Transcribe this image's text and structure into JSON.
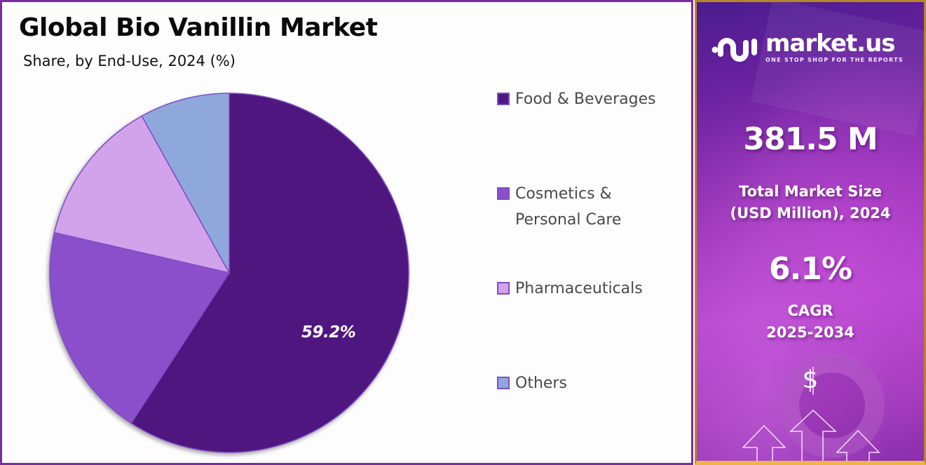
{
  "header": {
    "title": "Global Bio Vanillin Market",
    "subtitle": "Share, by End-Use, 2024 (%)"
  },
  "chart_data": {
    "type": "pie",
    "title": "Global Bio Vanillin Market",
    "subtitle": "Share, by End-Use, 2024 (%)",
    "categories": [
      "Food & Beverages",
      "Cosmetics & Personal Care",
      "Pharmaceuticals",
      "Others"
    ],
    "values": [
      59.2,
      19.4,
      13.3,
      8.1
    ],
    "labeled_values": {
      "Food & Beverages": "59.2%"
    },
    "colors": [
      "#4f1780",
      "#8b4fcb",
      "#d2a2ea",
      "#8fa8dc"
    ],
    "start_angle": "12 o'clock, clockwise",
    "legend_position": "right"
  },
  "pie": {
    "label_main": "59.2%"
  },
  "legend": {
    "items": [
      {
        "label": "Food & Beverages",
        "color": "#4f1780"
      },
      {
        "label": "Cosmetics & Personal Care",
        "color": "#8b4fcb"
      },
      {
        "label": "Pharmaceuticals",
        "color": "#d2a2ea"
      },
      {
        "label": "Others",
        "color": "#8fa8dc"
      }
    ]
  },
  "sidebar": {
    "brand": {
      "name": "market.us",
      "tagline": "ONE STOP SHOP FOR THE REPORTS"
    },
    "market_size": {
      "value": "381.5 M",
      "label_line1": "Total Market Size",
      "label_line2": "(USD Million), 2024"
    },
    "cagr": {
      "value": "6.1%",
      "label_line1": "CAGR",
      "label_line2": "2025-2034"
    },
    "dollar_symbol": "$"
  }
}
